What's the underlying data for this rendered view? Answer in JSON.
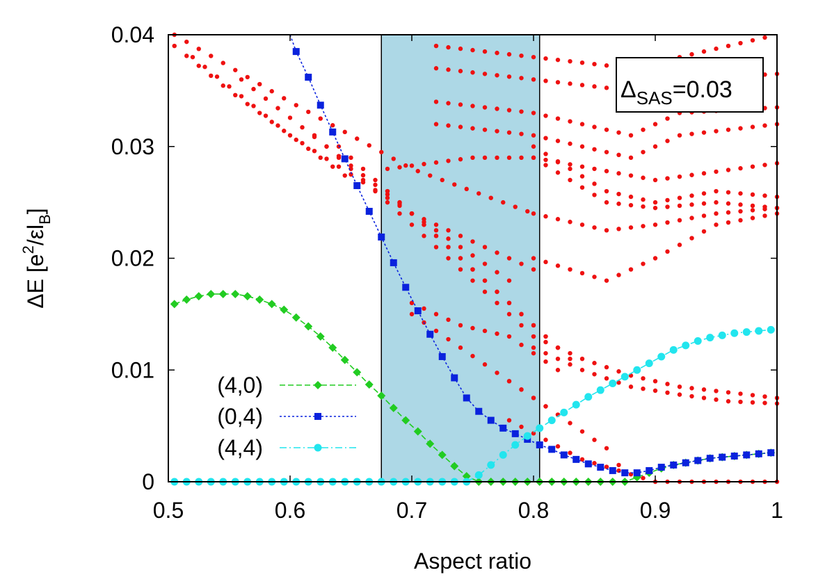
{
  "chart_data": {
    "type": "scatter",
    "xlabel": "Aspect ratio",
    "ylabel_main": "ΔE [e",
    "ylabel_sup": "2",
    "ylabel_mid": "/εl",
    "ylabel_sub": "B",
    "ylabel_end": "]",
    "xlim": [
      0.5,
      1.0
    ],
    "ylim": [
      0,
      0.04
    ],
    "xticks": [
      "0.5",
      "0.6",
      "0.7",
      "0.8",
      "0.9",
      "1"
    ],
    "xtick_values": [
      0.5,
      0.6,
      0.7,
      0.8,
      0.9,
      1.0
    ],
    "yticks": [
      "0",
      "0.01",
      "0.02",
      "0.03",
      "0.04"
    ],
    "ytick_values": [
      0,
      0.01,
      0.02,
      0.03,
      0.04
    ],
    "shaded_region": {
      "x_start": 0.675,
      "x_end": 0.805,
      "color": "#add8e6"
    },
    "annotation": {
      "main": "Δ",
      "sub": "SAS",
      "rest": "=0.03"
    },
    "colors": {
      "green": "#22cc22",
      "blue": "#0a22dd",
      "cyan": "#22e5ee",
      "red": "#ee1111"
    },
    "series": [
      {
        "name": "(4,0)",
        "color": "#22cc22",
        "marker": "diamond",
        "x": [
          0.505,
          0.515,
          0.525,
          0.535,
          0.545,
          0.555,
          0.565,
          0.575,
          0.585,
          0.595,
          0.605,
          0.615,
          0.625,
          0.635,
          0.645,
          0.655,
          0.665,
          0.675,
          0.685,
          0.695,
          0.705,
          0.715,
          0.725,
          0.735,
          0.745,
          0.755,
          0.765,
          0.775,
          0.785,
          0.795,
          0.805,
          0.815,
          0.825,
          0.835,
          0.845,
          0.855,
          0.865,
          0.875,
          0.885,
          0.895,
          0.905,
          0.915,
          0.925,
          0.935,
          0.945,
          0.955,
          0.965,
          0.975,
          0.985,
          0.995
        ],
        "y": [
          0.0159,
          0.0163,
          0.0166,
          0.0168,
          0.0168,
          0.0168,
          0.0166,
          0.0163,
          0.0159,
          0.0154,
          0.0147,
          0.0139,
          0.013,
          0.012,
          0.0109,
          0.0098,
          0.0087,
          0.0077,
          0.0066,
          0.0055,
          0.0045,
          0.0034,
          0.0024,
          0.0014,
          0.0005,
          0.0,
          0.0,
          0.0,
          0.0,
          0.0,
          0.0,
          0.0,
          0.0,
          0.0,
          0.0,
          0.0,
          0.0,
          0.0,
          0.0004,
          0.0008,
          0.0012,
          0.0015,
          0.0017,
          0.0019,
          0.0021,
          0.0022,
          0.0023,
          0.0024,
          0.0025,
          0.0026
        ]
      },
      {
        "name": "(0,4)",
        "color": "#0a22dd",
        "marker": "square",
        "x": [
          0.6,
          0.605,
          0.615,
          0.625,
          0.635,
          0.645,
          0.655,
          0.665,
          0.675,
          0.685,
          0.695,
          0.705,
          0.715,
          0.725,
          0.735,
          0.745,
          0.755,
          0.765,
          0.775,
          0.785,
          0.795,
          0.805,
          0.815,
          0.825,
          0.835,
          0.845,
          0.855,
          0.865,
          0.875,
          0.885,
          0.895,
          0.905,
          0.915,
          0.925,
          0.935,
          0.945,
          0.955,
          0.965,
          0.975,
          0.985,
          0.995
        ],
        "y": [
          0.04,
          0.0385,
          0.0362,
          0.0337,
          0.0313,
          0.0289,
          0.0265,
          0.0242,
          0.0219,
          0.0196,
          0.0174,
          0.0153,
          0.0132,
          0.0112,
          0.0093,
          0.0075,
          0.0063,
          0.0055,
          0.0048,
          0.0043,
          0.0038,
          0.0033,
          0.0029,
          0.0024,
          0.002,
          0.0016,
          0.0013,
          0.001,
          0.0008,
          0.0008,
          0.001,
          0.0013,
          0.0015,
          0.0017,
          0.0019,
          0.0021,
          0.0022,
          0.0023,
          0.0024,
          0.0025,
          0.0026
        ]
      },
      {
        "name": "(4,4)",
        "color": "#22e5ee",
        "marker": "circle",
        "x": [
          0.505,
          0.515,
          0.525,
          0.535,
          0.545,
          0.555,
          0.565,
          0.575,
          0.585,
          0.595,
          0.605,
          0.615,
          0.625,
          0.635,
          0.645,
          0.655,
          0.665,
          0.675,
          0.685,
          0.695,
          0.705,
          0.715,
          0.725,
          0.735,
          0.745,
          0.755,
          0.765,
          0.775,
          0.785,
          0.795,
          0.805,
          0.815,
          0.825,
          0.835,
          0.845,
          0.855,
          0.865,
          0.875,
          0.885,
          0.895,
          0.905,
          0.915,
          0.925,
          0.935,
          0.945,
          0.955,
          0.965,
          0.975,
          0.985,
          0.995
        ],
        "y": [
          0,
          0,
          0,
          0,
          0,
          0,
          0,
          0,
          0,
          0,
          0,
          0,
          0,
          0,
          0,
          0,
          0,
          0,
          0,
          0,
          0,
          0,
          0,
          0,
          0.0,
          0.0006,
          0.0015,
          0.0024,
          0.0033,
          0.0041,
          0.0048,
          0.0055,
          0.0062,
          0.0069,
          0.0076,
          0.0082,
          0.0088,
          0.0094,
          0.01,
          0.0106,
          0.0112,
          0.0118,
          0.0122,
          0.0126,
          0.0129,
          0.0131,
          0.0133,
          0.0134,
          0.0135,
          0.0136
        ]
      }
    ],
    "red_curves": [
      {
        "x": [
          0.505,
          0.6,
          0.7,
          0.8
        ],
        "y": [
          0.04,
          0.034,
          0.028,
          0.024
        ]
      },
      {
        "x": [
          0.505,
          0.55,
          0.6,
          0.65
        ],
        "y": [
          0.039,
          0.035,
          0.031,
          0.027
        ]
      },
      {
        "x": [
          0.52,
          0.6,
          0.7,
          0.8
        ],
        "y": [
          0.038,
          0.031,
          0.024,
          0.019
        ]
      },
      {
        "x": [
          0.56,
          0.63,
          0.7,
          0.78
        ],
        "y": [
          0.036,
          0.03,
          0.024,
          0.018
        ]
      },
      {
        "x": [
          0.62,
          0.68,
          0.74,
          0.8
        ],
        "y": [
          0.031,
          0.025,
          0.019,
          0.013
        ]
      },
      {
        "x": [
          0.64,
          0.7,
          0.76,
          0.82
        ],
        "y": [
          0.03,
          0.024,
          0.018,
          0.012
        ]
      },
      {
        "x": [
          0.68,
          0.73,
          0.78,
          0.83
        ],
        "y": [
          0.026,
          0.021,
          0.016,
          0.011
        ]
      },
      {
        "x": [
          0.7,
          0.74,
          0.78,
          0.82
        ],
        "y": [
          0.016,
          0.014,
          0.013,
          0.01
        ]
      },
      {
        "x": [
          0.7,
          0.74,
          0.78,
          0.82
        ],
        "y": [
          0.015,
          0.012,
          0.009,
          0.006
        ]
      },
      {
        "x": [
          0.78,
          0.82,
          0.86,
          0.88
        ],
        "y": [
          0.009,
          0.006,
          0.003,
          0.0
        ]
      },
      {
        "x": [
          0.72,
          0.8,
          0.88,
          0.92,
          1.0
        ],
        "y": [
          0.039,
          0.038,
          0.037,
          0.038,
          0.04
        ]
      },
      {
        "x": [
          0.72,
          0.8,
          0.88,
          0.92,
          1.0
        ],
        "y": [
          0.037,
          0.036,
          0.035,
          0.036,
          0.0365
        ]
      },
      {
        "x": [
          0.72,
          0.8,
          0.88,
          0.92,
          1.0
        ],
        "y": [
          0.034,
          0.033,
          0.031,
          0.033,
          0.0335
        ]
      },
      {
        "x": [
          0.72,
          0.8,
          0.88,
          0.92,
          1.0
        ],
        "y": [
          0.032,
          0.031,
          0.029,
          0.031,
          0.032
        ]
      },
      {
        "x": [
          0.68,
          0.75,
          0.8,
          0.9,
          1.0
        ],
        "y": [
          0.028,
          0.029,
          0.029,
          0.027,
          0.0285
        ]
      },
      {
        "x": [
          0.8,
          0.86,
          0.9,
          0.95,
          1.0
        ],
        "y": [
          0.03,
          0.026,
          0.025,
          0.026,
          0.0255
        ]
      },
      {
        "x": [
          0.8,
          0.86,
          0.9,
          0.95,
          1.0
        ],
        "y": [
          0.029,
          0.025,
          0.0245,
          0.025,
          0.0245
        ]
      },
      {
        "x": [
          0.8,
          0.86,
          0.9,
          0.95,
          1.0
        ],
        "y": [
          0.024,
          0.0225,
          0.023,
          0.024,
          0.0245
        ]
      },
      {
        "x": [
          0.8,
          0.86,
          0.9,
          0.95,
          1.0
        ],
        "y": [
          0.02,
          0.018,
          0.02,
          0.023,
          0.024
        ]
      },
      {
        "x": [
          0.8,
          0.84,
          0.88,
          0.92,
          0.96,
          1.0
        ],
        "y": [
          0.013,
          0.011,
          0.0095,
          0.0085,
          0.008,
          0.0075
        ]
      },
      {
        "x": [
          0.8,
          0.84,
          0.88,
          0.92,
          0.96,
          1.0
        ],
        "y": [
          0.012,
          0.01,
          0.0085,
          0.0078,
          0.0072,
          0.007
        ]
      },
      {
        "x": [
          0.78,
          0.84,
          0.9,
          0.95,
          1.0
        ],
        "y": [
          0.0055,
          0.002,
          0.0,
          0.0,
          0.0
        ]
      }
    ],
    "legend_position": "bottom-left"
  }
}
